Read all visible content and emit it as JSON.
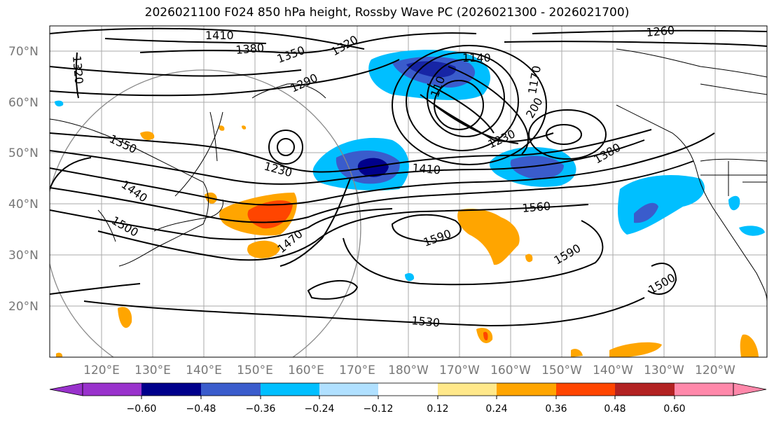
{
  "title": "2026021100 F024 850 hPa height, Rossby Wave PC (2026021300 - 2026021700)",
  "lat_labels": [
    "70°N",
    "60°N",
    "50°N",
    "40°N",
    "30°N",
    "20°N"
  ],
  "lon_labels": [
    "120°E",
    "130°E",
    "140°E",
    "150°E",
    "160°E",
    "170°E",
    "180°W",
    "170°W",
    "160°W",
    "150°W",
    "140°W",
    "130°W",
    "120°W"
  ],
  "contour_labels": {
    "c1410a": "1410",
    "c1380a": "1380",
    "c1350a": "1350",
    "c1320a": "1320",
    "c1320b": "1320",
    "c1290": "1290",
    "c1260": "1260",
    "c1140": "1140",
    "c1170": "1170",
    "c1110": "110",
    "c1200": "200",
    "c1230a": "1230",
    "c1230b": "1230",
    "c1350b": "1350",
    "c1440": "1440",
    "c1500a": "1500",
    "c1470": "1470",
    "c1410b": "1410",
    "c1380b": "1380",
    "c1560": "1560",
    "c1590a": "1590",
    "c1590b": "1590",
    "c1500b": "1500",
    "c1530": "1530"
  },
  "colorbar": {
    "ticks": [
      "−0.60",
      "−0.48",
      "−0.36",
      "−0.24",
      "−0.12",
      "0.12",
      "0.24",
      "0.36",
      "0.48",
      "0.60"
    ],
    "colors": [
      "#9932cc",
      "#00008b",
      "#3a5ccc",
      "#00bfff",
      "#b0e0ff",
      "#ffffff",
      "#ffe88a",
      "#ffa500",
      "#ff4500",
      "#b22222",
      "#ff88aa"
    ]
  }
}
